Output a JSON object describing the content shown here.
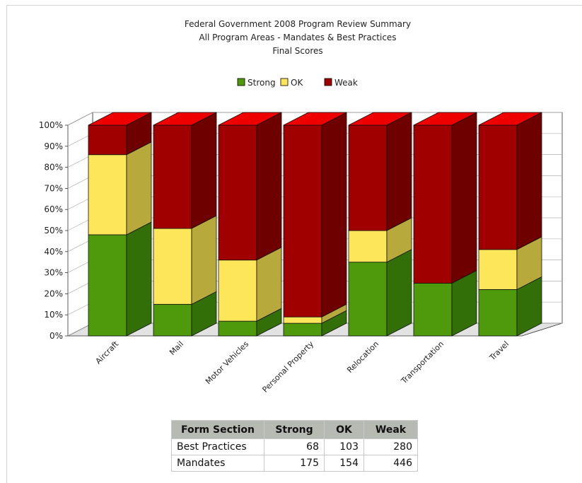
{
  "chart_data": {
    "type": "bar",
    "stacked": true,
    "percent_stacked": true,
    "title_lines": [
      "Federal Government 2008 Program Review Summary",
      "All Program Areas - Mandates & Best Practices",
      "Final Scores"
    ],
    "categories": [
      "Aircraft",
      "Mail",
      "Motor Vehicles",
      "Personal Property",
      "Relocation",
      "Transportation",
      "Travel"
    ],
    "series": [
      {
        "name": "Strong",
        "values": [
          48,
          15,
          7,
          6,
          35,
          25,
          22
        ]
      },
      {
        "name": "OK",
        "values": [
          38,
          36,
          29,
          3,
          15,
          0,
          19
        ]
      },
      {
        "name": "Weak",
        "values": [
          14,
          49,
          64,
          91,
          50,
          75,
          59
        ]
      }
    ],
    "y_ticks": [
      "0%",
      "10%",
      "20%",
      "30%",
      "40%",
      "50%",
      "60%",
      "70%",
      "80%",
      "90%",
      "100%"
    ],
    "ylim": [
      0,
      100
    ],
    "legend_position": "top-center",
    "colors": {
      "Strong": {
        "front": "#4e9a0c",
        "side": "#336f08",
        "top": "#4e9a0c"
      },
      "OK": {
        "front": "#fde65a",
        "side": "#b8a93c",
        "top": "#fde65a"
      },
      "Weak": {
        "front": "#a00000",
        "side": "#6e0000",
        "top": "#ee0000"
      }
    }
  },
  "table": {
    "headers": [
      "Form Section",
      "Strong",
      "OK",
      "Weak"
    ],
    "rows": [
      {
        "section": "Best Practices",
        "strong": "68",
        "ok": "103",
        "weak": "280"
      },
      {
        "section": "Mandates",
        "strong": "175",
        "ok": "154",
        "weak": "446"
      }
    ]
  }
}
